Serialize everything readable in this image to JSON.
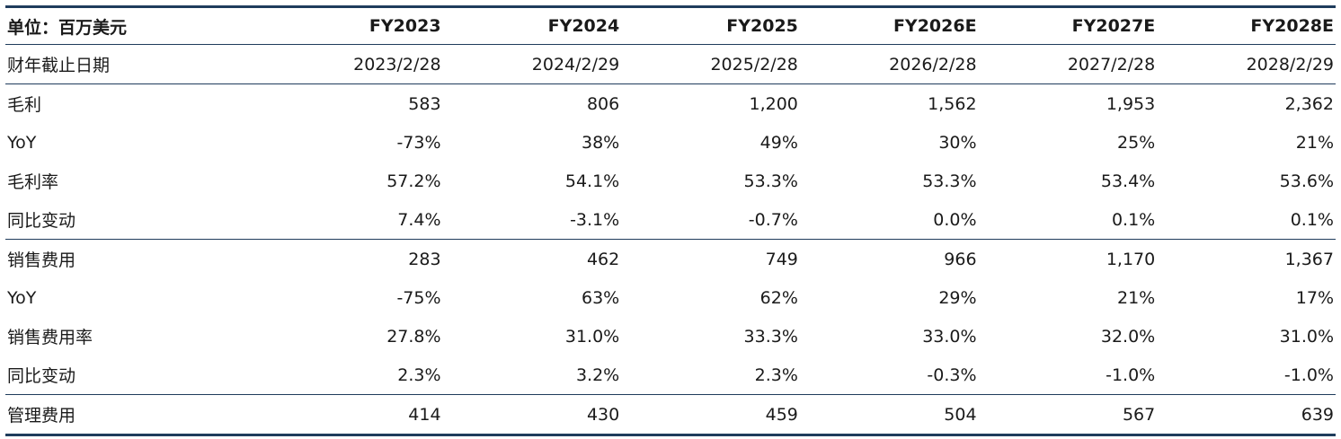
{
  "header": {
    "unit_label": "单位：百万美元",
    "columns": [
      "FY2023",
      "FY2024",
      "FY2025",
      "FY2026E",
      "FY2027E",
      "FY2028E"
    ]
  },
  "fiscal_year_end": {
    "label": "财年截止日期",
    "values": [
      "2023/2/28",
      "2024/2/29",
      "2025/2/28",
      "2026/2/28",
      "2027/2/28",
      "2028/2/29"
    ]
  },
  "rows": [
    {
      "label": "毛利",
      "values": [
        "583",
        "806",
        "1,200",
        "1,562",
        "1,953",
        "2,362"
      ]
    },
    {
      "label": "YoY",
      "values": [
        "-73%",
        "38%",
        "49%",
        "30%",
        "25%",
        "21%"
      ]
    },
    {
      "label": "毛利率",
      "values": [
        "57.2%",
        "54.1%",
        "53.3%",
        "53.3%",
        "53.4%",
        "53.6%"
      ]
    },
    {
      "label": "同比变动",
      "values": [
        "7.4%",
        "-3.1%",
        "-0.7%",
        "0.0%",
        "0.1%",
        "0.1%"
      ]
    },
    {
      "label": "销售费用",
      "values": [
        "283",
        "462",
        "749",
        "966",
        "1,170",
        "1,367"
      ]
    },
    {
      "label": "YoY",
      "values": [
        "-75%",
        "63%",
        "62%",
        "29%",
        "21%",
        "17%"
      ]
    },
    {
      "label": "销售费用率",
      "values": [
        "27.8%",
        "31.0%",
        "33.3%",
        "33.0%",
        "32.0%",
        "31.0%"
      ]
    },
    {
      "label": "同比变动",
      "values": [
        "2.3%",
        "3.2%",
        "2.3%",
        "-0.3%",
        "-1.0%",
        "-1.0%"
      ]
    },
    {
      "label": "管理费用",
      "values": [
        "414",
        "430",
        "459",
        "504",
        "567",
        "639"
      ]
    }
  ]
}
